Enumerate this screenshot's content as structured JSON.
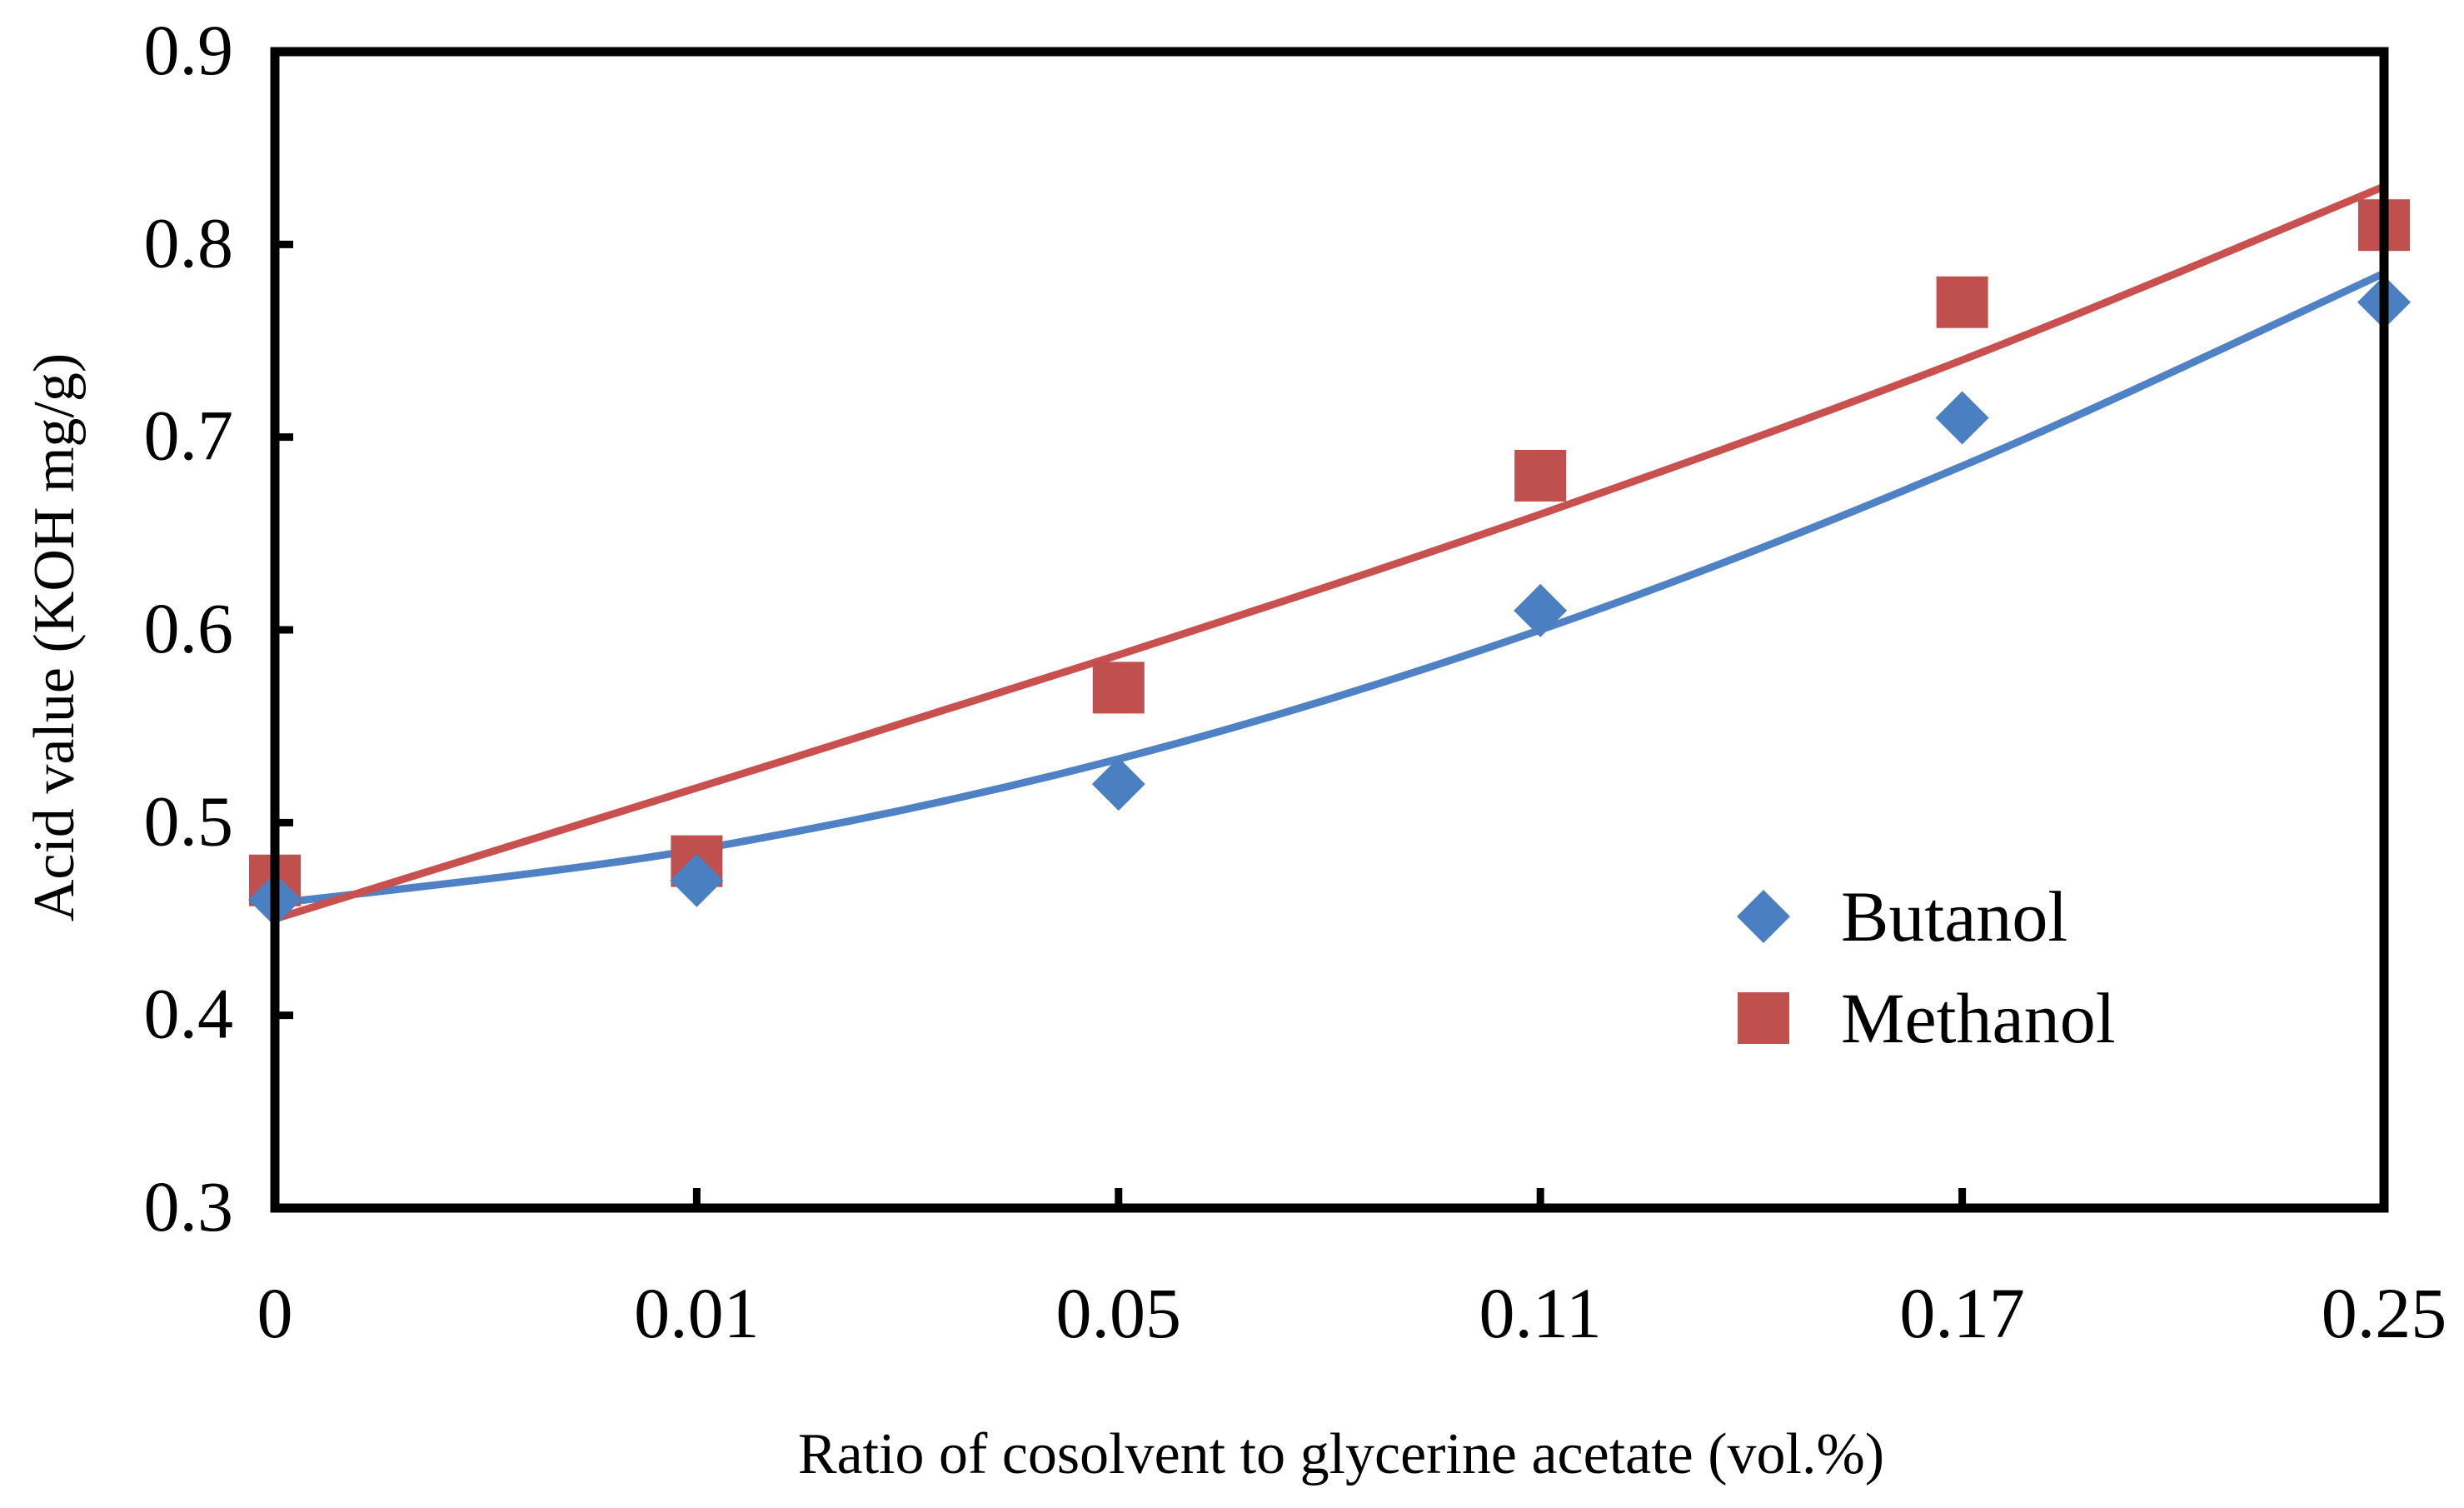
{
  "chart_data": {
    "type": "scatter",
    "title": "",
    "xlabel": "Ratio of cosolvent to glycerine acetate (vol.%)",
    "ylabel": "Acid value (KOH mg/g)",
    "categories": [
      "0",
      "0.01",
      "0.05",
      "0.11",
      "0.17",
      "0.25"
    ],
    "y_ticks": [
      "0.3",
      "0.4",
      "0.5",
      "0.6",
      "0.7",
      "0.8",
      "0.9"
    ],
    "ylim": [
      0.3,
      0.9
    ],
    "grid": false,
    "legend_position": "lower-right",
    "series": [
      {
        "name": "Butanol",
        "marker": "diamond",
        "color": "#4a7fc1",
        "trend_color": "#4f81c5",
        "values": [
          0.46,
          0.47,
          0.52,
          0.61,
          0.71,
          0.77
        ],
        "trendline": [
          0.458,
          0.486,
          0.533,
          0.6,
          0.685,
          0.785
        ]
      },
      {
        "name": "Methanol",
        "marker": "square",
        "color": "#c0504d",
        "trend_color": "#c8504f",
        "values": [
          0.47,
          0.48,
          0.57,
          0.68,
          0.77,
          0.81
        ],
        "trendline": [
          0.45,
          0.518,
          0.587,
          0.66,
          0.74,
          0.83
        ]
      }
    ]
  }
}
